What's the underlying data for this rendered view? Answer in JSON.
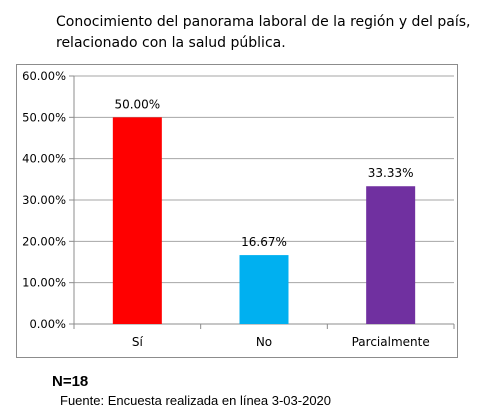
{
  "chart_data": {
    "type": "bar",
    "title": "Conocimiento del panorama laboral de la región y del país, relacionado con la salud pública.",
    "categories": [
      "Sí",
      "No",
      "Parcialmente"
    ],
    "values": [
      50.0,
      16.67,
      33.33
    ],
    "data_labels": [
      "50.00%",
      "16.67%",
      "33.33%"
    ],
    "colors": [
      "#ff0000",
      "#00b0f0",
      "#7030a0"
    ],
    "ylim": [
      0,
      60
    ],
    "yticks": [
      "0.00%",
      "10.00%",
      "20.00%",
      "30.00%",
      "40.00%",
      "50.00%",
      "60.00%"
    ],
    "grid": true,
    "xlabel": "",
    "ylabel": ""
  },
  "footer": {
    "n": "N=18",
    "source": "Fuente: Encuesta realizada en línea 3-03-2020"
  }
}
